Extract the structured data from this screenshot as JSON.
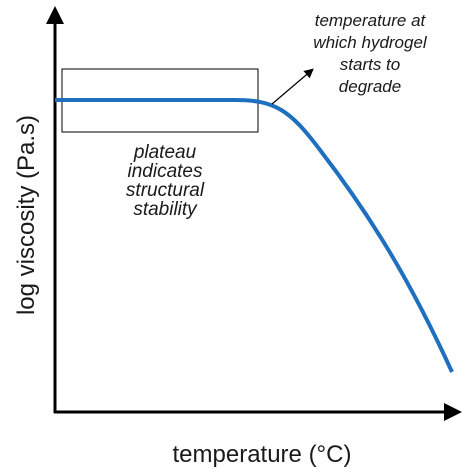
{
  "axes": {
    "x_label": "temperature (°C)",
    "y_label": "log viscosity (Pa.s)"
  },
  "annotations": [
    {
      "lines": [
        "temperature at",
        "which hydrogel",
        "starts to",
        "degrade"
      ]
    },
    {
      "lines": [
        "plateau",
        "indicates",
        "structural",
        "stability"
      ]
    }
  ]
}
